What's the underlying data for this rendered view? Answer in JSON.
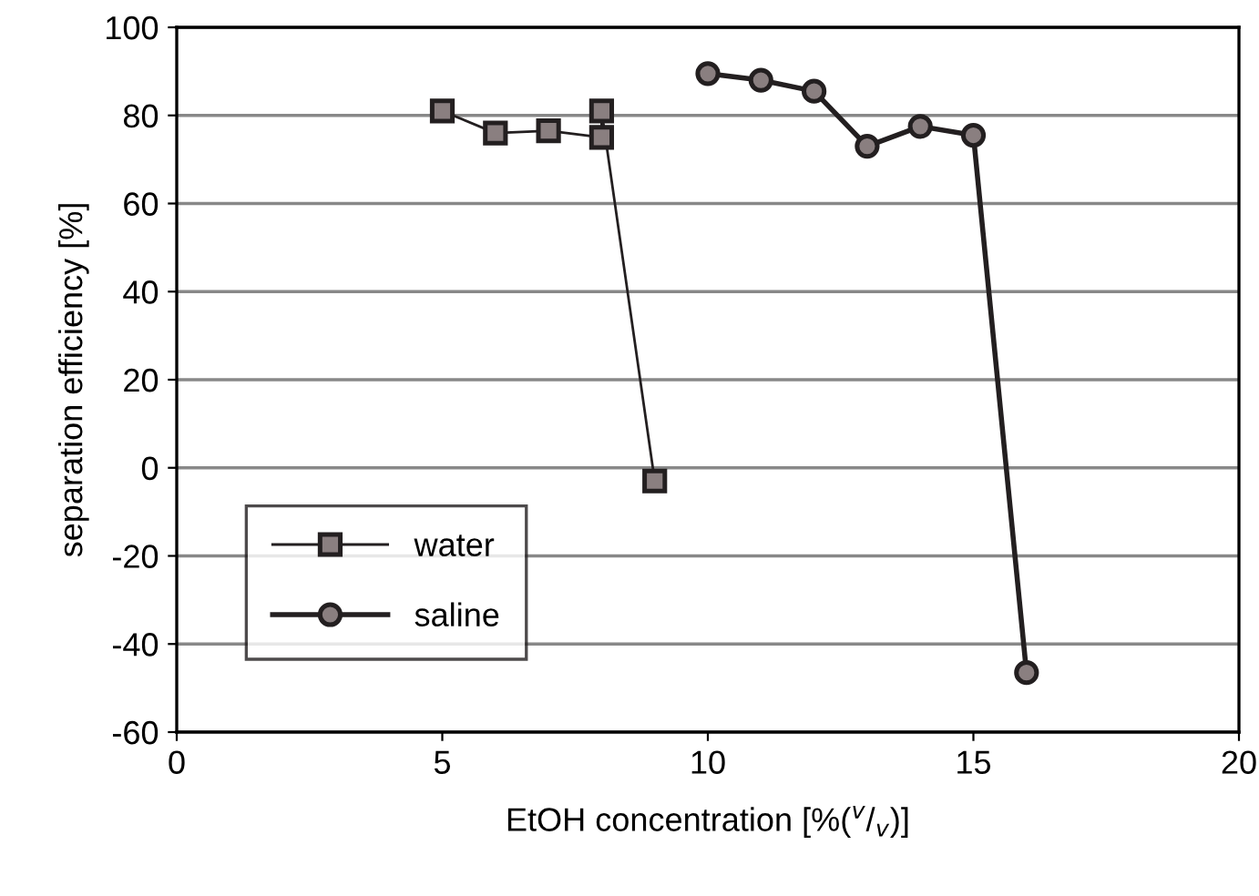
{
  "chart_data": {
    "type": "line",
    "xlabel": "EtOH concentration [%($^{v}$/$_{v}$)]",
    "ylabel": "separation efficiency [%]",
    "xlim": [
      0,
      20
    ],
    "xticks": [
      0,
      5,
      10,
      15,
      20
    ],
    "ylim": [
      -60,
      100
    ],
    "yticks": [
      -60,
      -40,
      -20,
      0,
      20,
      40,
      60,
      80,
      100
    ],
    "grid": "y",
    "legend": "bottom left",
    "line_style": "solid",
    "series": [
      {
        "name": "water",
        "color": "#8a7f80",
        "marker": "square",
        "x": [
          5,
          6,
          7,
          8,
          8,
          9
        ],
        "values": [
          81,
          76,
          76.5,
          75,
          81,
          -3
        ]
      },
      {
        "name": "saline",
        "color": "#8a7f80",
        "marker": "circle",
        "x": [
          10,
          11,
          12,
          13,
          14,
          15,
          16
        ],
        "values": [
          89.5,
          88,
          85.5,
          73,
          77.5,
          75.5,
          -46.5
        ]
      }
    ]
  }
}
